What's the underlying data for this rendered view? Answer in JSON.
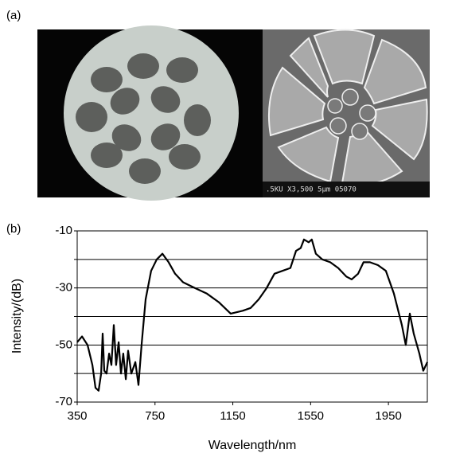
{
  "panel_labels": [
    "(a)",
    "(b)"
  ],
  "sem_caption": ".5KU  X3,500   5μm  05070",
  "chart_data": {
    "type": "line",
    "color": "#000000",
    "x_label": "Wavelength/nm",
    "y_label": "Intensity/(dB)",
    "x": [
      350,
      375,
      403,
      428,
      444,
      460,
      473,
      481,
      489,
      501,
      514,
      526,
      538,
      550,
      563,
      575,
      587,
      600,
      612,
      628,
      649,
      665,
      681,
      702,
      730,
      759,
      788,
      820,
      853,
      894,
      955,
      1017,
      1078,
      1139,
      1201,
      1242,
      1283,
      1324,
      1364,
      1405,
      1446,
      1475,
      1499,
      1516,
      1540,
      1556,
      1577,
      1610,
      1651,
      1692,
      1733,
      1761,
      1794,
      1822,
      1855,
      1896,
      1937,
      1978,
      2019,
      2039,
      2060,
      2080,
      2109,
      2129,
      2150
    ],
    "values": [
      -49,
      -47,
      -50,
      -57,
      -65,
      -66,
      -60,
      -46,
      -59,
      -60,
      -53,
      -57,
      -43,
      -57,
      -49,
      -60,
      -53,
      -62,
      -52,
      -60,
      -56,
      -64,
      -50,
      -34,
      -24,
      -20,
      -18,
      -21,
      -25,
      -28,
      -30,
      -32,
      -35,
      -39,
      -38,
      -37,
      -34,
      -30,
      -25,
      -24,
      -23,
      -17,
      -16,
      -13,
      -14,
      -13,
      -18,
      -20,
      -21,
      -23,
      -26,
      -27,
      -25,
      -21,
      -21,
      -22,
      -24,
      -32,
      -43,
      -50,
      -39,
      -46,
      -53,
      -59,
      -56
    ],
    "xlim": [
      350,
      2150
    ],
    "xticks": [
      350,
      750,
      1150,
      1550,
      1950
    ],
    "ylim": [
      -70,
      -10
    ],
    "yticks": [
      -10,
      -30,
      -50,
      -70
    ],
    "minor_yticks": [
      -20,
      -40,
      -60
    ],
    "grid": true
  }
}
